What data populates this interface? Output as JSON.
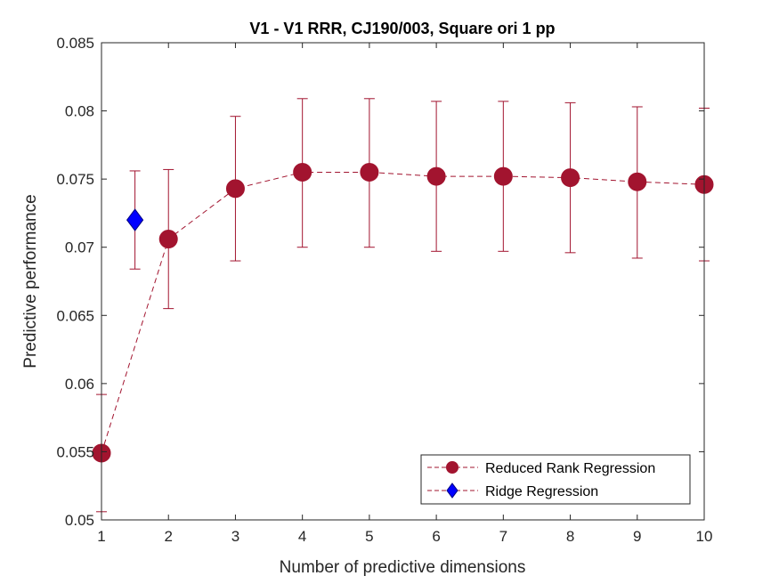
{
  "chart_data": {
    "type": "line",
    "title": "V1 - V1 RRR, CJ190/003, Square ori 1 pp",
    "xlabel": "Number of predictive dimensions",
    "ylabel": "Predictive performance",
    "xlim": [
      1,
      10
    ],
    "ylim": [
      0.05,
      0.085
    ],
    "xticks": [
      1,
      2,
      3,
      4,
      5,
      6,
      7,
      8,
      9,
      10
    ],
    "yticks": [
      0.05,
      0.055,
      0.06,
      0.065,
      0.07,
      0.075,
      0.08,
      0.085
    ],
    "ytick_labels": [
      "0.05",
      "0.055",
      "0.06",
      "0.065",
      "0.07",
      "0.075",
      "0.08",
      "0.085"
    ],
    "grid": false,
    "legend_position": "bottom-right",
    "series": [
      {
        "name": "Reduced Rank Regression",
        "color": "#a2142f",
        "marker": "circle",
        "line_style": "dashed",
        "x": [
          1,
          2,
          3,
          4,
          5,
          6,
          7,
          8,
          9,
          10
        ],
        "y": [
          0.0549,
          0.0706,
          0.0743,
          0.0755,
          0.0755,
          0.0752,
          0.0752,
          0.0751,
          0.0748,
          0.0746
        ],
        "err_low": [
          0.0506,
          0.0655,
          0.069,
          0.07,
          0.07,
          0.0697,
          0.0697,
          0.0696,
          0.0692,
          0.069
        ],
        "err_high": [
          0.0592,
          0.0757,
          0.0796,
          0.0809,
          0.0809,
          0.0807,
          0.0807,
          0.0806,
          0.0803,
          0.0802
        ]
      },
      {
        "name": "Ridge Regression",
        "color": "#0000ff",
        "marker": "diamond",
        "line_style": "dashed",
        "x": [
          1.5
        ],
        "y": [
          0.072
        ],
        "err_low": [
          0.0684
        ],
        "err_high": [
          0.0756
        ]
      }
    ]
  }
}
